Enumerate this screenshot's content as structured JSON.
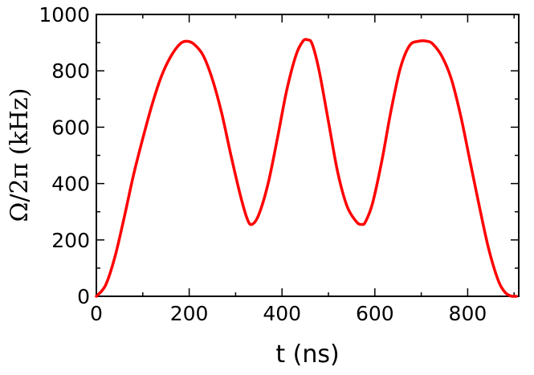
{
  "chart_data": {
    "type": "line",
    "title": "",
    "xlabel": "t (ns)",
    "ylabel": "Ω/2π (kHz)",
    "xlim": [
      0,
      910
    ],
    "ylim": [
      0,
      1000
    ],
    "xticks": [
      0,
      200,
      400,
      600,
      800
    ],
    "yticks": [
      0,
      200,
      400,
      600,
      800,
      1000
    ],
    "xtick_labels": [
      "0",
      "200",
      "400",
      "600",
      "800"
    ],
    "ytick_labels": [
      "0",
      "200",
      "400",
      "600",
      "800",
      "1000"
    ],
    "grid": false,
    "series": [
      {
        "color": "#ff0000",
        "x": [
          0,
          20,
          40,
          60,
          80,
          100,
          120,
          140,
          160,
          180,
          195,
          210,
          230,
          250,
          270,
          290,
          310,
          325,
          335,
          350,
          370,
          390,
          410,
          430,
          445,
          455,
          465,
          480,
          500,
          520,
          540,
          560,
          572,
          580,
          595,
          615,
          635,
          655,
          675,
          695,
          712,
          725,
          745,
          765,
          785,
          805,
          825,
          845,
          865,
          880,
          895,
          905
        ],
        "y": [
          0,
          40,
          140,
          280,
          430,
          560,
          680,
          780,
          850,
          895,
          905,
          895,
          855,
          770,
          650,
          500,
          360,
          275,
          255,
          290,
          400,
          560,
          730,
          855,
          905,
          910,
          895,
          800,
          620,
          440,
          320,
          265,
          255,
          265,
          330,
          480,
          660,
          810,
          890,
          905,
          905,
          895,
          850,
          770,
          640,
          480,
          320,
          170,
          60,
          15,
          0,
          0
        ]
      }
    ]
  }
}
